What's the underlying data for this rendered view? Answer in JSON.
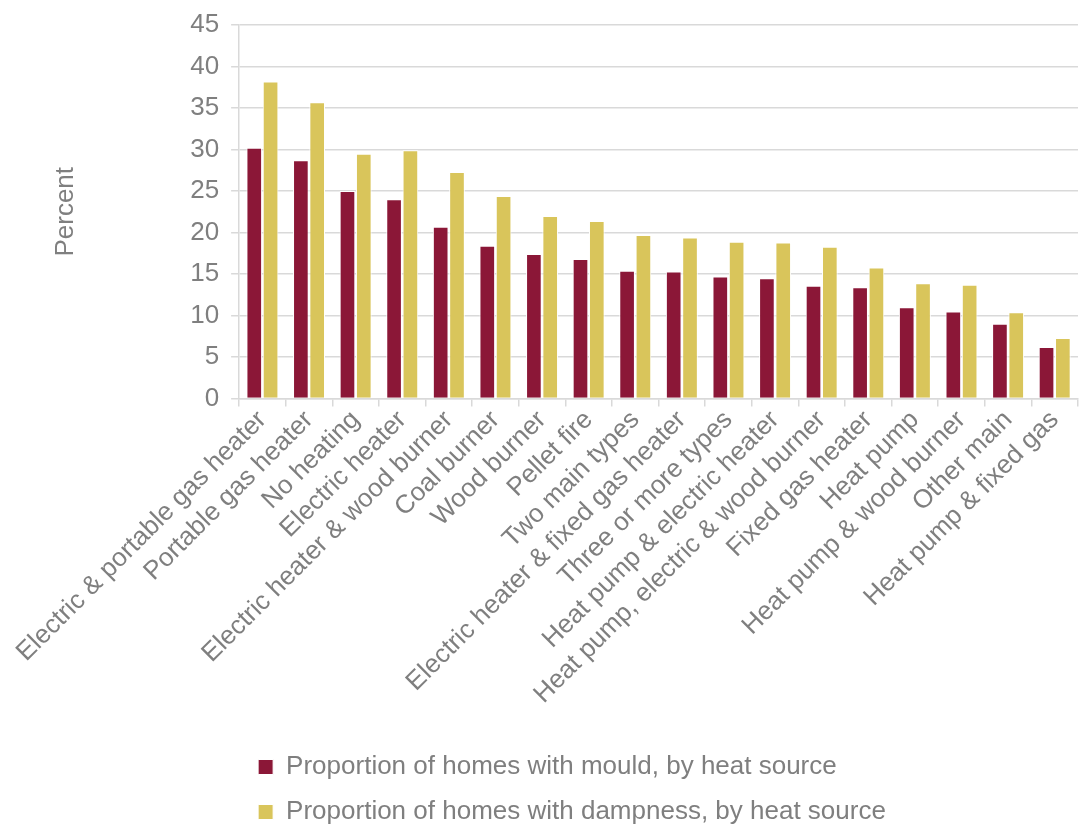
{
  "chart_data": {
    "type": "bar",
    "ylabel": "Percent",
    "categories": [
      "Electric & portable gas heater",
      "Portable gas heater",
      "No heating",
      "Electric heater",
      "Electric heater & wood burner",
      "Coal burner",
      "Wood burner",
      "Pellet fire",
      "Two main types",
      "Electric heater & fixed gas heater",
      "Three or more types",
      "Heat pump & electric heater",
      "Heat pump, electric & wood burner",
      "Fixed gas heater",
      "Heat pump",
      "Heat pump & wood burner",
      "Other main",
      "Heat pump & fixed gas"
    ],
    "series": [
      {
        "name": "Proportion of homes with mould, by heat source",
        "color": "#8b1737",
        "values": [
          30.2,
          28.7,
          25.0,
          24.0,
          20.7,
          18.4,
          17.4,
          16.8,
          15.4,
          15.3,
          14.7,
          14.5,
          13.6,
          13.4,
          11.0,
          10.5,
          9.0,
          6.2
        ]
      },
      {
        "name": "Proportion of homes with dampness, by heat source",
        "color": "#d9c55b",
        "values": [
          38.2,
          35.7,
          29.5,
          29.9,
          27.3,
          24.4,
          22.0,
          21.4,
          19.7,
          19.4,
          18.9,
          18.8,
          18.3,
          15.8,
          13.9,
          13.7,
          10.4,
          7.3
        ]
      }
    ],
    "ylim": [
      0,
      45
    ],
    "yticks": [
      0,
      5,
      10,
      15,
      20,
      25,
      30,
      35,
      40,
      45
    ],
    "grid": "y",
    "legend": "bottom left"
  }
}
